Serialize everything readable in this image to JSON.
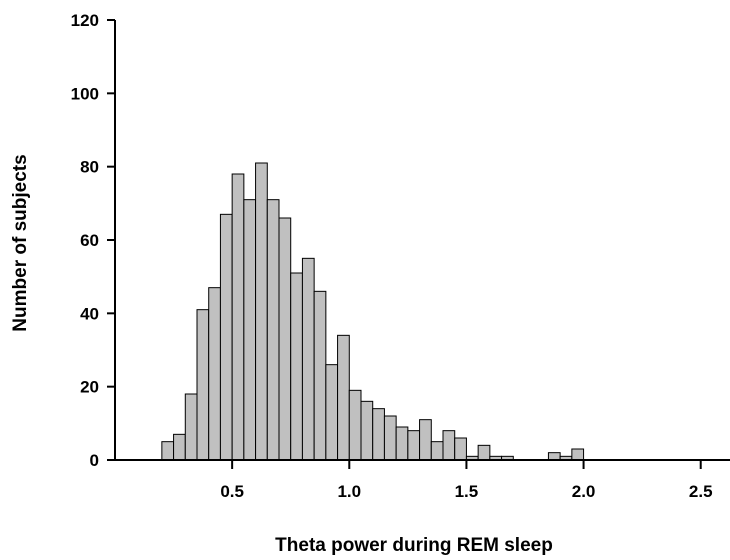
{
  "chart_data": {
    "type": "bar",
    "title": "",
    "xlabel": "Theta power during REM sleep",
    "ylabel": "Number of subjects",
    "xlim": [
      0.0,
      2.625
    ],
    "ylim": [
      0,
      120
    ],
    "x_ticks": [
      0.5,
      1.0,
      1.5,
      2.0,
      2.5
    ],
    "x_tick_labels": [
      "0.5",
      "1.0",
      "1.5",
      "2.0",
      "2.5"
    ],
    "y_ticks": [
      0,
      20,
      40,
      60,
      80,
      100,
      120
    ],
    "y_tick_labels": [
      "0",
      "20",
      "40",
      "60",
      "80",
      "100",
      "120"
    ],
    "bin_width": 0.05,
    "bin_starts": [
      0.2,
      0.25,
      0.3,
      0.35,
      0.4,
      0.45,
      0.5,
      0.55,
      0.6,
      0.65,
      0.7,
      0.75,
      0.8,
      0.85,
      0.9,
      0.95,
      1.0,
      1.05,
      1.1,
      1.15,
      1.2,
      1.25,
      1.3,
      1.35,
      1.4,
      1.45,
      1.5,
      1.55,
      1.6,
      1.65,
      1.7,
      1.75,
      1.8,
      1.85,
      1.9,
      1.95,
      2.0,
      2.05,
      2.1,
      2.15,
      2.2,
      2.25,
      2.3,
      2.35,
      2.4,
      2.45
    ],
    "values": [
      5,
      7,
      18,
      41,
      47,
      67,
      78,
      71,
      81,
      71,
      66,
      51,
      55,
      46,
      26,
      34,
      19,
      16,
      14,
      12,
      9,
      8,
      11,
      5,
      8,
      6,
      1,
      4,
      1,
      1,
      0,
      0,
      0,
      2,
      1,
      3,
      0,
      0,
      0,
      0,
      0,
      0,
      0,
      0,
      0,
      0
    ],
    "bar_color": "#c0c0c0",
    "edge_color": "#000000",
    "grid": false,
    "legend": "none"
  }
}
